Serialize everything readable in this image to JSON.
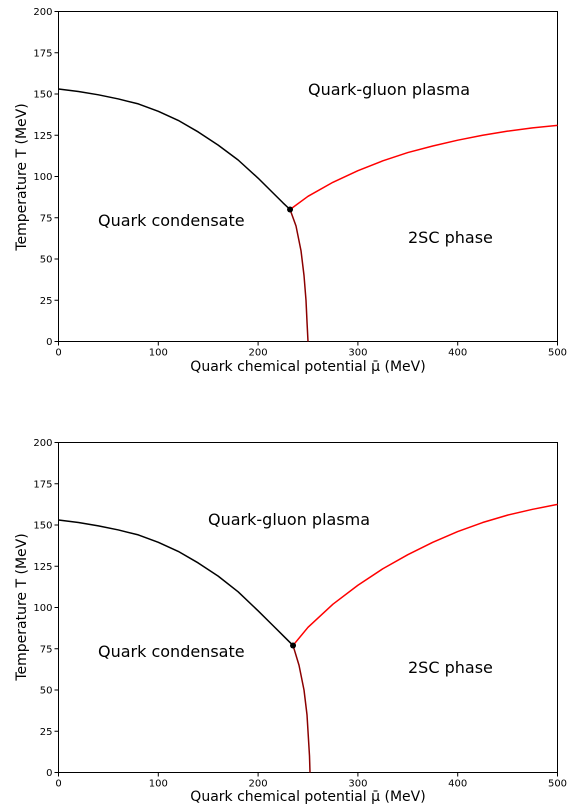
{
  "chart_data": [
    {
      "type": "line",
      "xlabel": "Quark chemical potential μ̄ (MeV)",
      "ylabel": "Temperature T (MeV)",
      "xlim": [
        0,
        500
      ],
      "ylim": [
        0,
        200
      ],
      "x_ticks": [
        "0",
        "100",
        "200",
        "300",
        "400",
        "500"
      ],
      "y_ticks": [
        "0",
        "25",
        "50",
        "75",
        "100",
        "125",
        "150",
        "175",
        "200"
      ],
      "grid": false,
      "annotations": [
        {
          "text": "Quark-gluon plasma",
          "x": 250,
          "y": 150
        },
        {
          "text": "Quark condensate",
          "x": 40,
          "y": 70
        },
        {
          "text": "2SC phase",
          "x": 350,
          "y": 60
        }
      ],
      "series": [
        {
          "color": "#000000",
          "x": [
            0,
            20,
            40,
            60,
            80,
            100,
            120,
            140,
            160,
            180,
            200,
            215,
            225,
            232
          ],
          "y": [
            153,
            151.5,
            149.5,
            147,
            144,
            139.5,
            134,
            127,
            119,
            110,
            99,
            90,
            84,
            80
          ]
        },
        {
          "color": "#ff0000",
          "x": [
            232,
            250,
            275,
            300,
            325,
            350,
            375,
            400,
            425,
            450,
            475,
            500
          ],
          "y": [
            80,
            88,
            96.5,
            103.5,
            109.5,
            114.5,
            118.5,
            122,
            125,
            127.5,
            129.5,
            131
          ]
        },
        {
          "color": "#8b0000",
          "x": [
            232,
            238,
            243,
            246,
            248,
            249,
            250
          ],
          "y": [
            80,
            70,
            55,
            40,
            25,
            12,
            0
          ]
        }
      ],
      "critical_point": {
        "x": 232,
        "y": 80
      }
    },
    {
      "type": "line",
      "xlabel": "Quark chemical potential μ̄ (MeV)",
      "ylabel": "Temperature T (MeV)",
      "xlim": [
        0,
        500
      ],
      "ylim": [
        0,
        200
      ],
      "x_ticks": [
        "0",
        "100",
        "200",
        "300",
        "400",
        "500"
      ],
      "y_ticks": [
        "0",
        "25",
        "50",
        "75",
        "100",
        "125",
        "150",
        "175",
        "200"
      ],
      "grid": false,
      "annotations": [
        {
          "text": "Quark-gluon plasma",
          "x": 150,
          "y": 150
        },
        {
          "text": "Quark condensate",
          "x": 40,
          "y": 70
        },
        {
          "text": "2SC phase",
          "x": 350,
          "y": 60
        }
      ],
      "series": [
        {
          "color": "#000000",
          "x": [
            0,
            20,
            40,
            60,
            80,
            100,
            120,
            140,
            160,
            180,
            200,
            215,
            225,
            235
          ],
          "y": [
            153,
            151.5,
            149.5,
            147,
            144,
            139.5,
            134,
            127,
            119,
            109.5,
            98,
            89,
            83,
            77
          ]
        },
        {
          "color": "#ff0000",
          "x": [
            235,
            250,
            275,
            300,
            325,
            350,
            375,
            400,
            425,
            450,
            475,
            500
          ],
          "y": [
            77,
            88,
            102,
            113.5,
            123.5,
            132,
            139.5,
            146,
            151.5,
            156,
            159.5,
            162.5
          ]
        },
        {
          "color": "#8b0000",
          "x": [
            235,
            241,
            246,
            249,
            250.5,
            251.5,
            252
          ],
          "y": [
            77,
            65,
            50,
            35,
            20,
            10,
            0
          ]
        }
      ],
      "critical_point": {
        "x": 235,
        "y": 77
      }
    }
  ]
}
